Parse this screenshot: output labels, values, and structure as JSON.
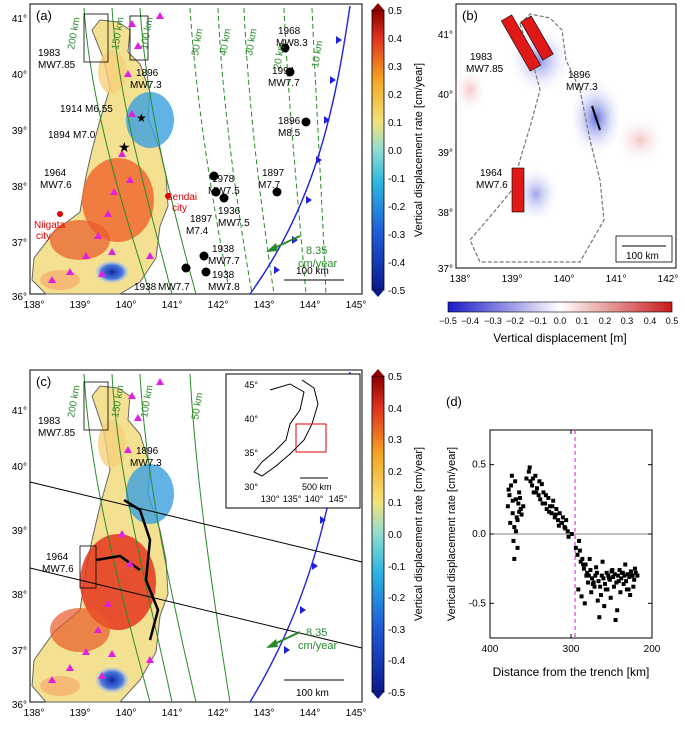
{
  "panels": {
    "a": {
      "label": "(a)"
    },
    "b": {
      "label": "(b)"
    },
    "c": {
      "label": "(c)"
    },
    "d": {
      "label": "(d)"
    }
  },
  "axes": {
    "lon_ticks_ac": [
      "138°",
      "139°",
      "140°",
      "141°",
      "142°",
      "143°",
      "144°",
      "145°"
    ],
    "lat_ticks_ac": [
      "36°",
      "37°",
      "38°",
      "39°",
      "40°",
      "41°"
    ],
    "lon_ticks_b": [
      "138°",
      "139°",
      "140°",
      "141°",
      "142°"
    ],
    "lat_ticks_b": [
      "37°",
      "38°",
      "39°",
      "40°",
      "41°"
    ]
  },
  "colorbars": {
    "rate_title": "Vertical displacement rate [cm/year]",
    "rate_ticks": [
      "0.5",
      "0.4",
      "0.3",
      "0.2",
      "0.1",
      "0.0",
      "-0.1",
      "-0.2",
      "-0.3",
      "-0.4",
      "-0.5"
    ],
    "disp_title": "Vertical displacement [m]",
    "disp_ticks": [
      "−0.5",
      "−0.4",
      "−0.3",
      "−0.2",
      "−0.1",
      "0.0",
      "0.1",
      "0.2",
      "0.3",
      "0.4",
      "0.5"
    ]
  },
  "map_a": {
    "distance_labels": [
      "200 km",
      "150 km",
      "100 km",
      "50 km",
      "40 km",
      "30 km",
      "20 km",
      "10 km"
    ],
    "earthquakes": {
      "eq1983_year": "1983",
      "eq1983_mag": "MW7.85",
      "eq1896_year": "1896",
      "eq1896_mag": "MW7.3",
      "eq1914": "1914 M6.55",
      "eq1894": "1894 M7.0",
      "eq1964_year": "1964",
      "eq1964_mag": "MW7.6",
      "eq1968_year": "1968",
      "eq1968_mag": "MW8.3",
      "eq1994_year": "1994",
      "eq1994_mag": "MW7.7",
      "eq1896b_year": "1896",
      "eq1896b_mag": "M8.5",
      "eq1897_year": "1897",
      "eq1897_mag": "M7.7",
      "eq1978_year": "1978",
      "eq1978_mag": "MW7.5",
      "eq1936_year": "1936",
      "eq1936_mag": "MW7.5",
      "eq1897b_year": "1897",
      "eq1897b_mag": "M7.4",
      "eq1938a_year": "1938",
      "eq1938a_mag": "MW7.7",
      "eq1938b_year": "1938",
      "eq1938b_mag": "MW7.8",
      "eq1938c_year": "1938",
      "eq1938c_mag": "MW7.7"
    },
    "cities": {
      "sendai": "Sendai",
      "sendai2": "city",
      "niigata": "Niigata",
      "niigata2": "city"
    },
    "velocity": "8.35",
    "velocity_unit": "cm/year",
    "scale": "100 km"
  },
  "map_b": {
    "eq1983_year": "1983",
    "eq1983_mag": "MW7.85",
    "eq1896_year": "1896",
    "eq1896_mag": "MW7.3",
    "eq1964_year": "1964",
    "eq1964_mag": "MW7.6",
    "scale": "100 km"
  },
  "map_c": {
    "distance_labels": [
      "200 km",
      "150 km",
      "100 km",
      "50 km"
    ],
    "eq1983_year": "1983",
    "eq1983_mag": "MW7.85",
    "eq1896_year": "1896",
    "eq1896_mag": "MW7.3",
    "eq1964_year": "1964",
    "eq1964_mag": "MW7.6",
    "velocity": "8.35",
    "velocity_unit": "cm/year",
    "scale": "100 km",
    "inset": {
      "lat_ticks": [
        "45°",
        "40°",
        "35°",
        "30°"
      ],
      "lon_ticks": [
        "130°",
        "135°",
        "140°",
        "145°"
      ],
      "scale": "500 km"
    }
  },
  "chart_data": {
    "type": "scatter",
    "title": "",
    "xlabel": "Distance from the trench [km]",
    "ylabel": "Vertical displacement rate [cm/year]",
    "xlim": [
      400,
      200
    ],
    "ylim": [
      -0.75,
      0.75
    ],
    "x_ticks": [
      "400",
      "300",
      "200"
    ],
    "y_ticks": [
      "0.5",
      "0.0",
      "-0.5"
    ],
    "reference_x": 295,
    "series": [
      {
        "name": "stations",
        "x": [
          378,
          376,
          374,
          372,
          370,
          368,
          366,
          364,
          362,
          373,
          369,
          365,
          371,
          367,
          363,
          375,
          361,
          359,
          377,
          370,
          366,
          368,
          364,
          372,
          355,
          352,
          350,
          348,
          346,
          344,
          342,
          340,
          338,
          336,
          334,
          332,
          330,
          328,
          326,
          324,
          322,
          320,
          318,
          316,
          314,
          312,
          310,
          308,
          306,
          304,
          351,
          347,
          343,
          339,
          335,
          331,
          327,
          323,
          319,
          315,
          311,
          307,
          303,
          299,
          294,
          292,
          290,
          288,
          286,
          284,
          282,
          280,
          278,
          276,
          274,
          272,
          270,
          268,
          266,
          264,
          262,
          260,
          258,
          256,
          254,
          252,
          250,
          248,
          246,
          244,
          242,
          240,
          238,
          236,
          234,
          232,
          230,
          228,
          226,
          224,
          222,
          220,
          218,
          291,
          287,
          283,
          279,
          275,
          271,
          267,
          263,
          259,
          255,
          251,
          247,
          243,
          239,
          235,
          231,
          227,
          223,
          289,
          285,
          281,
          277,
          273,
          269,
          265,
          261,
          257,
          253,
          249,
          245,
          241,
          237,
          233,
          229,
          225,
          221
        ],
        "y": [
          0.2,
          0.28,
          0.35,
          0.15,
          0.05,
          0.25,
          0.1,
          0.3,
          0.18,
          0.42,
          0.38,
          0.22,
          -0.05,
          0.12,
          0.26,
          0.08,
          0.14,
          0.2,
          0.32,
          -0.18,
          -0.1,
          0.02,
          0.16,
          0.24,
          0.4,
          0.45,
          0.38,
          0.35,
          0.3,
          0.42,
          0.33,
          0.28,
          0.25,
          0.36,
          0.3,
          0.22,
          0.18,
          0.26,
          0.2,
          0.15,
          0.24,
          0.12,
          0.18,
          0.1,
          0.15,
          0.08,
          0.12,
          0.05,
          0.1,
          0.02,
          0.48,
          0.4,
          0.3,
          0.38,
          0.22,
          0.28,
          0.16,
          0.2,
          0.14,
          0.06,
          0.08,
          0.04,
          -0.02,
          0.0,
          -0.1,
          -0.15,
          -0.05,
          -0.2,
          -0.18,
          -0.25,
          -0.22,
          -0.28,
          -0.3,
          -0.26,
          -0.32,
          -0.35,
          -0.3,
          -0.28,
          -0.34,
          -0.38,
          -0.3,
          -0.32,
          -0.36,
          -0.28,
          -0.3,
          -0.33,
          -0.27,
          -0.31,
          -0.29,
          -0.35,
          -0.3,
          -0.26,
          -0.32,
          -0.28,
          -0.3,
          -0.34,
          -0.29,
          -0.31,
          -0.27,
          -0.3,
          -0.33,
          -0.28,
          -0.3,
          -0.4,
          -0.45,
          -0.5,
          -0.35,
          -0.42,
          -0.38,
          -0.48,
          -0.44,
          -0.52,
          -0.4,
          -0.46,
          -0.38,
          -0.55,
          -0.42,
          -0.36,
          -0.4,
          -0.44,
          -0.38,
          -0.12,
          -0.22,
          -0.3,
          -0.18,
          -0.36,
          -0.24,
          -0.6,
          -0.2,
          -0.4,
          -0.32,
          -0.26,
          -0.62,
          -0.34,
          -0.28,
          -0.22,
          -0.4,
          -0.3,
          -0.25
        ]
      }
    ]
  }
}
